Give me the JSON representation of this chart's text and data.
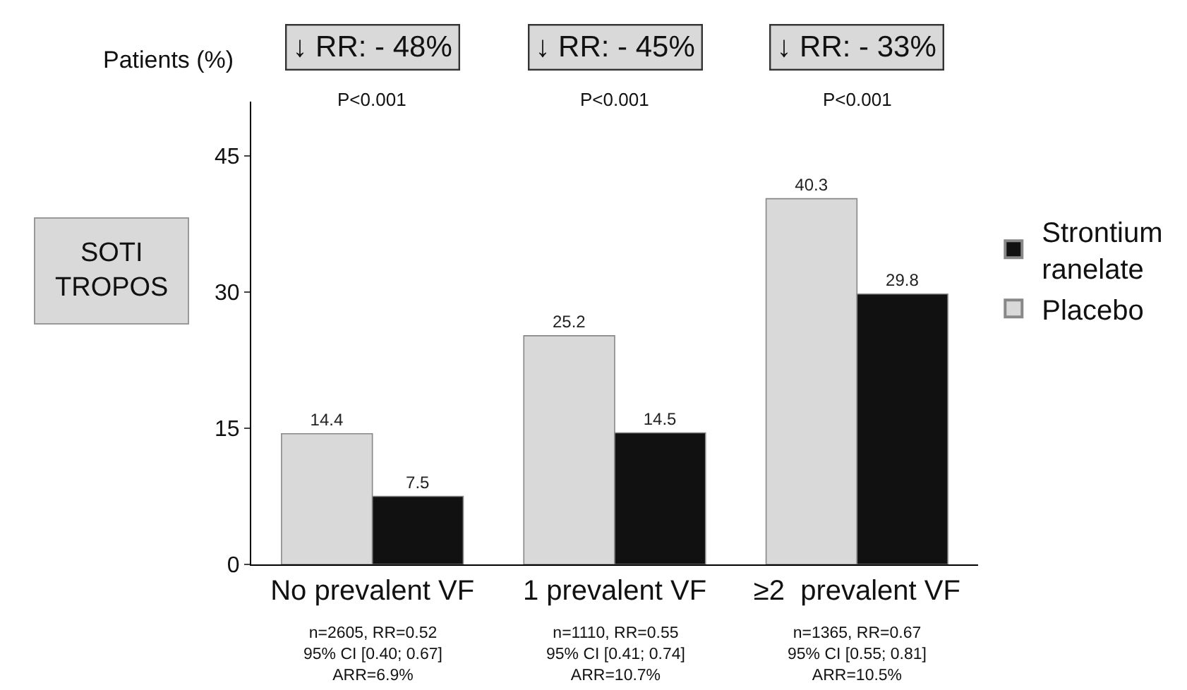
{
  "chart_data": {
    "type": "bar",
    "ylabel": "Patients (%)",
    "categories": [
      "No prevalent VF",
      "1 prevalent VF",
      "≥2  prevalent VF"
    ],
    "series": [
      {
        "name": "Placebo",
        "color": "#d9d9d9",
        "values": [
          14.4,
          25.2,
          40.3
        ]
      },
      {
        "name": "Strontium ranelate",
        "color": "#111111",
        "values": [
          7.5,
          14.5,
          29.8
        ]
      }
    ],
    "ylim": [
      0,
      51
    ],
    "yticks": [
      0,
      15,
      30,
      45
    ],
    "legend": "right",
    "data_labels": true,
    "annotations": [
      "↓ RR: - 48%",
      "↓ RR: - 45%",
      "↓ RR: - 33%",
      "P<0.001",
      "P<0.001",
      "P<0.001",
      "n=2605, RR=0.52\n95% CI [0.40; 0.67]\nARR=6.9%",
      "n=1110, RR=0.55\n95% CI [0.41; 0.74]\nARR=10.7%",
      "n=1365, RR=0.67\n95% CI [0.55; 0.81]\nARR=10.5%",
      "SOTI\nTROPOS"
    ]
  }
}
